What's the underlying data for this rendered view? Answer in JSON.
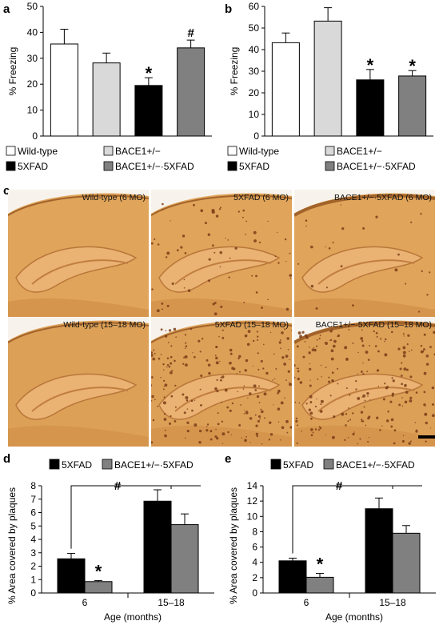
{
  "panels": {
    "a": "a",
    "b": "b",
    "c": "c",
    "d": "d",
    "e": "e"
  },
  "legend_top": [
    "Wild-type",
    "BACE1+/−",
    "5XFAD",
    "BACE1+/−·5XFAD"
  ],
  "legend_bottom": [
    "5XFAD",
    "BACE1+/−·5XFAD"
  ],
  "colors": {
    "wild_type": "#ffffff",
    "bace1_het": "#d9d9d9",
    "fxfad": "#000000",
    "bace1_fxfad": "#808080"
  },
  "micrographs": [
    {
      "caption": "Wild-type (6 MO)",
      "plaques": "none"
    },
    {
      "caption": "5XFAD (6 MO)",
      "plaques": "moderate"
    },
    {
      "caption": "BACE1+/−·5XFAD (6 MO)",
      "plaques": "sparse"
    },
    {
      "caption": "Wild-type (15–18 MO)",
      "plaques": "none"
    },
    {
      "caption": "5XFAD (15–18 MO)",
      "plaques": "dense"
    },
    {
      "caption": "BACE1+/−·5XFAD (15–18 MO)",
      "plaques": "dense"
    }
  ],
  "chart_data": [
    {
      "panel": "a",
      "type": "bar",
      "ylabel": "% Freezing",
      "ylim": [
        0,
        50
      ],
      "yticks": [
        0,
        10,
        20,
        30,
        40,
        50
      ],
      "categories": [
        "Wild-type",
        "BACE1+/−",
        "5XFAD",
        "BACE1+/−·5XFAD"
      ],
      "values": [
        35.5,
        28.2,
        19.5,
        34.0
      ],
      "errors": [
        5.7,
        3.8,
        3.0,
        3.0
      ],
      "annotations": [
        "",
        "",
        "*",
        "#"
      ]
    },
    {
      "panel": "b",
      "type": "bar",
      "ylabel": "% Freezing",
      "ylim": [
        0,
        60
      ],
      "yticks": [
        0,
        10,
        20,
        30,
        40,
        50,
        60
      ],
      "categories": [
        "Wild-type",
        "BACE1+/−",
        "5XFAD",
        "BACE1+/−·5XFAD"
      ],
      "values": [
        43.2,
        53.2,
        26.0,
        27.8
      ],
      "errors": [
        4.5,
        6.2,
        4.8,
        2.5
      ],
      "annotations": [
        "",
        "",
        "*",
        "*"
      ]
    },
    {
      "panel": "d",
      "type": "bar",
      "ylabel": "% Area covered by plaques",
      "xlabel": "Age (months)",
      "ylim": [
        0,
        8
      ],
      "yticks": [
        0,
        1,
        2,
        3,
        4,
        5,
        6,
        7,
        8
      ],
      "categories": [
        "6",
        "15–18"
      ],
      "series": [
        {
          "name": "5XFAD",
          "values": [
            2.55,
            6.85
          ],
          "errors": [
            0.4,
            0.85
          ]
        },
        {
          "name": "BACE1+/−·5XFAD",
          "values": [
            0.85,
            5.1
          ],
          "errors": [
            0.08,
            0.8
          ]
        }
      ],
      "annotations": [
        "*",
        "#"
      ]
    },
    {
      "panel": "e",
      "type": "bar",
      "ylabel": "% Area covered by plaques",
      "xlabel": "Age (months)",
      "ylim": [
        0,
        14
      ],
      "yticks": [
        0,
        2,
        4,
        6,
        8,
        10,
        12,
        14
      ],
      "categories": [
        "6",
        "15–18"
      ],
      "series": [
        {
          "name": "5XFAD",
          "values": [
            4.2,
            11.0
          ],
          "errors": [
            0.35,
            1.4
          ]
        },
        {
          "name": "BACE1+/−·5XFAD",
          "values": [
            2.05,
            7.8
          ],
          "errors": [
            0.5,
            1.0
          ]
        }
      ],
      "annotations": [
        "*",
        "#"
      ]
    }
  ]
}
